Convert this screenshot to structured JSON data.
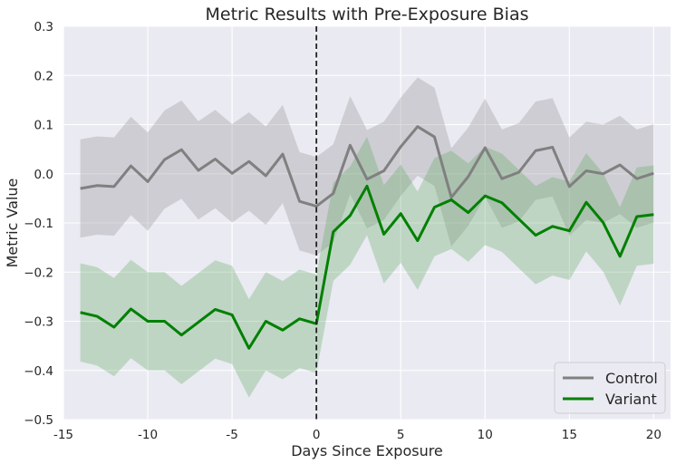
{
  "chart_data": {
    "type": "line",
    "title": "Metric Results with Pre-Exposure Bias",
    "xlabel": "Days Since Exposure",
    "ylabel": "Metric Value",
    "xlim": [
      -15,
      21
    ],
    "ylim": [
      -0.5,
      0.3
    ],
    "xticks": [
      -15,
      -10,
      -5,
      0,
      5,
      10,
      15,
      20
    ],
    "xtick_labels": [
      "-15",
      "-10",
      "-5",
      "0",
      "5",
      "10",
      "15",
      "20"
    ],
    "yticks": [
      -0.5,
      -0.4,
      -0.3,
      -0.2,
      -0.1,
      0.0,
      0.1,
      0.2,
      0.3
    ],
    "ytick_labels": [
      "−0.5",
      "−0.4",
      "−0.3",
      "−0.2",
      "−0.1",
      "0.0",
      "0.1",
      "0.2",
      "0.3"
    ],
    "grid": true,
    "vline": {
      "x": 0,
      "style": "dashed",
      "color": "#222222"
    },
    "legend": {
      "position": "lower-right"
    },
    "x": [
      -14,
      -13,
      -12,
      -11,
      -10,
      -9,
      -8,
      -7,
      -6,
      -5,
      -4,
      -3,
      -2,
      -1,
      0,
      1,
      2,
      3,
      4,
      5,
      6,
      7,
      8,
      9,
      10,
      11,
      12,
      13,
      14,
      15,
      16,
      17,
      18,
      19,
      20
    ],
    "series": [
      {
        "name": "Control",
        "color": "#808080",
        "band_color": "#8c8c8c",
        "values": [
          -0.03,
          -0.024,
          -0.026,
          0.016,
          -0.016,
          0.029,
          0.049,
          0.007,
          0.03,
          0.001,
          0.025,
          -0.004,
          0.04,
          -0.056,
          -0.066,
          -0.04,
          0.058,
          -0.011,
          0.006,
          0.055,
          0.096,
          0.075,
          -0.048,
          -0.006,
          0.053,
          -0.01,
          0.003,
          0.047,
          0.054,
          -0.026,
          0.006,
          0.0,
          0.018,
          -0.01,
          0.001
        ],
        "lower": [
          -0.13,
          -0.124,
          -0.126,
          -0.084,
          -0.116,
          -0.071,
          -0.051,
          -0.093,
          -0.07,
          -0.099,
          -0.075,
          -0.104,
          -0.06,
          -0.156,
          -0.166,
          -0.14,
          -0.042,
          -0.111,
          -0.094,
          -0.045,
          -0.004,
          -0.025,
          -0.148,
          -0.106,
          -0.047,
          -0.11,
          -0.097,
          -0.053,
          -0.046,
          -0.126,
          -0.094,
          -0.1,
          -0.082,
          -0.11,
          -0.099
        ],
        "upper": [
          0.07,
          0.076,
          0.074,
          0.116,
          0.084,
          0.129,
          0.149,
          0.107,
          0.13,
          0.101,
          0.125,
          0.096,
          0.14,
          0.044,
          0.034,
          0.06,
          0.158,
          0.089,
          0.106,
          0.155,
          0.196,
          0.175,
          0.052,
          0.094,
          0.153,
          0.09,
          0.103,
          0.147,
          0.154,
          0.074,
          0.106,
          0.1,
          0.118,
          0.09,
          0.101
        ]
      },
      {
        "name": "Variant",
        "color": "#008000",
        "band_color": "#5aa55a",
        "values": [
          -0.282,
          -0.29,
          -0.312,
          -0.275,
          -0.3,
          -0.3,
          -0.328,
          -0.302,
          -0.276,
          -0.287,
          -0.355,
          -0.3,
          -0.318,
          -0.295,
          -0.305,
          -0.118,
          -0.085,
          -0.025,
          -0.123,
          -0.081,
          -0.136,
          -0.068,
          -0.053,
          -0.079,
          -0.045,
          -0.059,
          -0.092,
          -0.125,
          -0.107,
          -0.116,
          -0.058,
          -0.099,
          -0.168,
          -0.087,
          -0.083
        ],
        "lower": [
          -0.382,
          -0.39,
          -0.412,
          -0.375,
          -0.4,
          -0.4,
          -0.428,
          -0.402,
          -0.376,
          -0.387,
          -0.455,
          -0.4,
          -0.418,
          -0.395,
          -0.405,
          -0.218,
          -0.185,
          -0.125,
          -0.223,
          -0.181,
          -0.236,
          -0.168,
          -0.153,
          -0.179,
          -0.145,
          -0.159,
          -0.192,
          -0.225,
          -0.207,
          -0.216,
          -0.158,
          -0.199,
          -0.268,
          -0.187,
          -0.183
        ],
        "upper": [
          -0.182,
          -0.19,
          -0.212,
          -0.175,
          -0.2,
          -0.2,
          -0.228,
          -0.202,
          -0.176,
          -0.187,
          -0.255,
          -0.2,
          -0.218,
          -0.195,
          -0.205,
          -0.018,
          0.015,
          0.075,
          -0.023,
          0.019,
          -0.036,
          0.032,
          0.047,
          0.021,
          0.055,
          0.041,
          0.008,
          -0.025,
          -0.007,
          -0.016,
          0.042,
          0.001,
          -0.068,
          0.013,
          0.017
        ]
      }
    ]
  }
}
